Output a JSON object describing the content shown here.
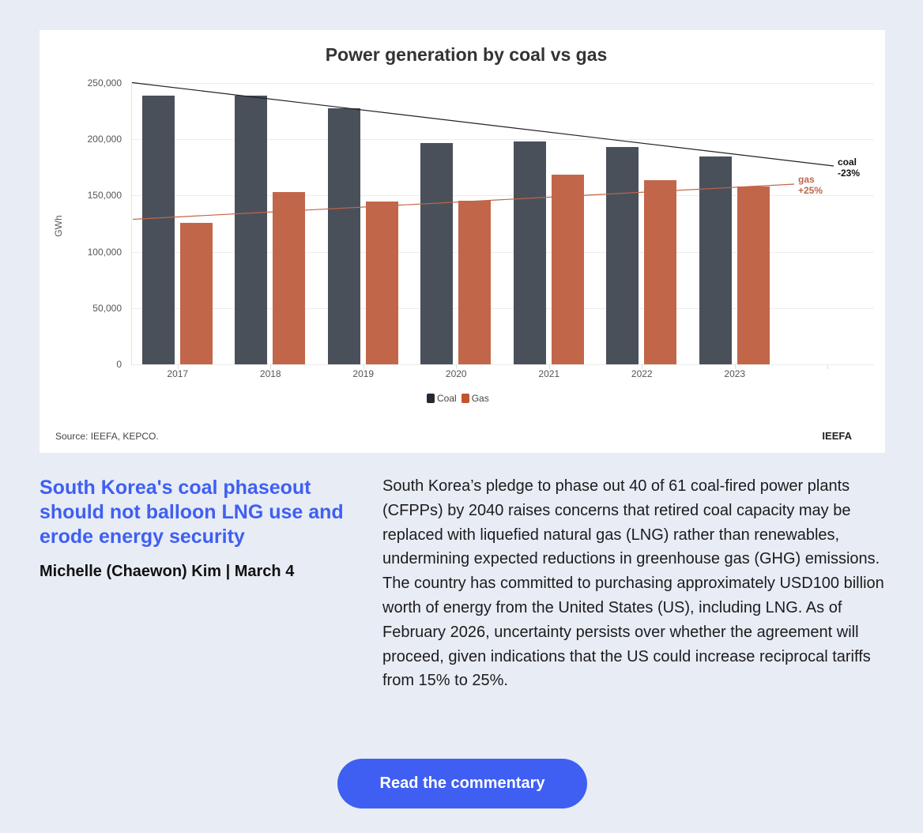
{
  "chart_data": {
    "type": "bar",
    "title": "Power generation by coal vs gas",
    "xlabel": "",
    "ylabel": "GWh",
    "ylim": [
      0,
      250000
    ],
    "yticks": [
      "0",
      "50,000",
      "100,000",
      "150,000",
      "200,000",
      "250,000"
    ],
    "categories": [
      "2017",
      "2018",
      "2019",
      "2020",
      "2021",
      "2022",
      "2023"
    ],
    "series": [
      {
        "name": "Coal",
        "color": "#4a505a",
        "values": [
          239000,
          239000,
          227700,
          196400,
          198000,
          193300,
          184900
        ]
      },
      {
        "name": "Gas",
        "color": "#c2664a",
        "values": [
          125900,
          152900,
          144500,
          145600,
          168300,
          163600,
          158000
        ]
      }
    ],
    "trendlines": [
      {
        "name": "coal",
        "label": "-23%",
        "color": "#222222"
      },
      {
        "name": "gas",
        "label": "+25%",
        "color": "#c2664a"
      }
    ],
    "grid": true,
    "legend_position": "bottom"
  },
  "chart": {
    "title": "Power generation by coal vs gas",
    "ylabel": "GWh",
    "legend": {
      "coal": "Coal",
      "gas": "Gas"
    },
    "annotations": {
      "coal_name": "coal",
      "coal_change": "-23%",
      "gas_name": "gas",
      "gas_change": "+25%"
    },
    "source": "Source: IEEFA, KEPCO.",
    "brand": "IEEFA"
  },
  "article": {
    "headline": "South Korea's coal phaseout should not balloon LNG use and erode energy security",
    "byline": "Michelle (Chaewon) Kim | March 4",
    "summary": "South Korea’s pledge to phase out 40 of 61 coal-fired power plants (CFPPs) by 2040 raises concerns that retired coal capacity may be replaced with liquefied natural gas (LNG) rather than renewables, undermining expected reductions in greenhouse gas (GHG) emissions. The country has committed to purchasing approximately USD100 billion worth of energy from the United States (US), including LNG. As of February 2026, uncertainty persists over whether the agreement will proceed, given indications that the US could increase reciprocal tariffs from 15% to 25%.",
    "cta_label": "Read the commentary"
  },
  "colors": {
    "background": "#e8ecf5",
    "accent": "#3f5ff2",
    "coal": "#4a505a",
    "gas": "#c2664a"
  }
}
